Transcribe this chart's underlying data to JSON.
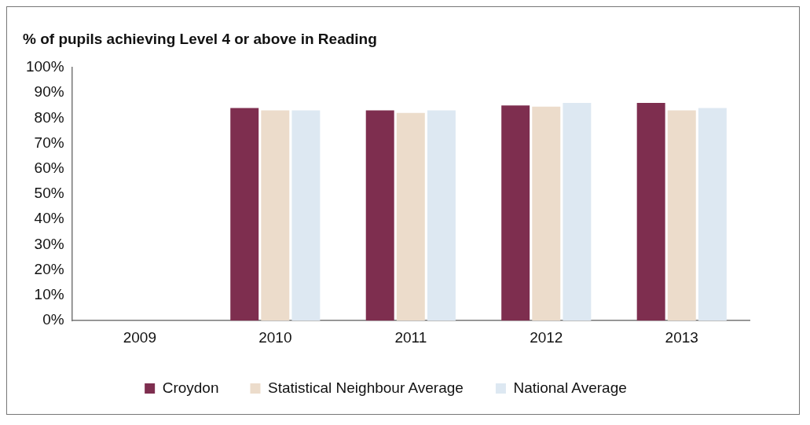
{
  "chart_data": {
    "type": "bar",
    "title": "% of pupils achieving Level 4 or above in Reading",
    "categories": [
      "2009",
      "2010",
      "2011",
      "2012",
      "2013"
    ],
    "series": [
      {
        "name": "Croydon",
        "color": "#7e2e4f",
        "values": [
          null,
          84,
          83,
          85,
          86
        ]
      },
      {
        "name": "Statistical Neighbour Average",
        "color": "#ecdccb",
        "values": [
          null,
          83,
          82,
          84.5,
          83
        ]
      },
      {
        "name": "National Average",
        "color": "#dde8f2",
        "values": [
          null,
          83,
          83,
          86,
          84
        ]
      }
    ],
    "ylim": [
      0,
      100
    ],
    "yticks": [
      {
        "value": 0,
        "label": "0%"
      },
      {
        "value": 10,
        "label": "10%"
      },
      {
        "value": 20,
        "label": "20%"
      },
      {
        "value": 30,
        "label": "30%"
      },
      {
        "value": 40,
        "label": "40%"
      },
      {
        "value": 50,
        "label": "50%"
      },
      {
        "value": 60,
        "label": "60%"
      },
      {
        "value": 70,
        "label": "70%"
      },
      {
        "value": 80,
        "label": "80%"
      },
      {
        "value": 90,
        "label": "90%"
      },
      {
        "value": 100,
        "label": "100%"
      }
    ],
    "grid": false,
    "legend": "bottom"
  }
}
